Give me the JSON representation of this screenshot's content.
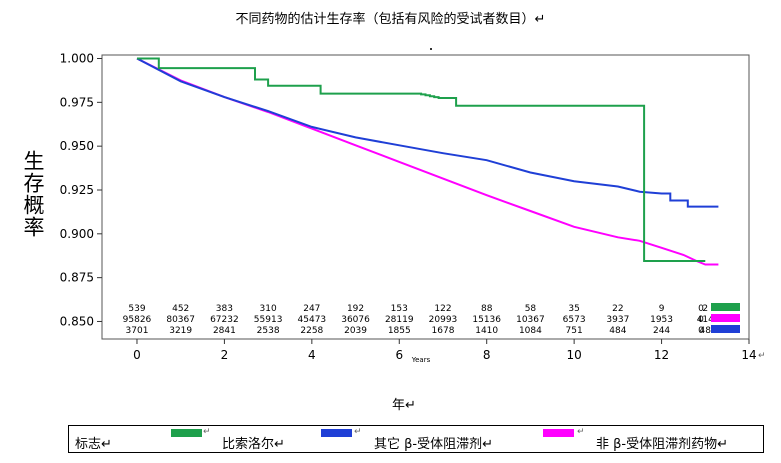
{
  "chart_data": {
    "type": "line",
    "title": "不同药物的估计生存率（包括有风险的受试者数目）↵",
    "xlabel": "年↵",
    "ylabel": "生存概率",
    "inner_xlabel": "Years",
    "xlim": [
      -0.8,
      14
    ],
    "ylim": [
      0.84,
      1.002
    ],
    "xticks": [
      0,
      2,
      4,
      6,
      8,
      10,
      12,
      14
    ],
    "yticks": [
      "1.000",
      "0.975",
      "0.950",
      "0.925",
      "0.900",
      "0.875",
      "0.850"
    ],
    "grid": false,
    "series": [
      {
        "name": "比索洛尔↵",
        "color": "#1ea04c",
        "x": [
          0,
          0.5,
          0.5,
          2.7,
          2.7,
          3.0,
          3.0,
          4.2,
          4.2,
          6.5,
          6.5,
          6.6,
          6.6,
          6.7,
          6.7,
          6.8,
          6.8,
          6.9,
          6.9,
          7.3,
          7.3,
          11.6,
          11.6,
          13.0
        ],
        "y": [
          1.0,
          1.0,
          0.9945,
          0.9945,
          0.988,
          0.988,
          0.9845,
          0.9845,
          0.98,
          0.98,
          0.9795,
          0.9795,
          0.979,
          0.979,
          0.9785,
          0.9785,
          0.978,
          0.978,
          0.9775,
          0.9775,
          0.973,
          0.973,
          0.8845,
          0.8845
        ]
      },
      {
        "name": "其它 β-受体阻滞剂↵",
        "color": "#1f3fd6",
        "x": [
          0,
          1,
          2,
          3,
          4,
          5,
          6,
          7,
          8,
          9,
          10,
          11,
          11.5,
          12,
          12.2,
          12.2,
          12.5,
          12.6,
          12.6,
          13.3
        ],
        "y": [
          1.0,
          0.987,
          0.978,
          0.97,
          0.961,
          0.955,
          0.9505,
          0.946,
          0.942,
          0.935,
          0.93,
          0.927,
          0.924,
          0.923,
          0.923,
          0.919,
          0.919,
          0.919,
          0.9155,
          0.9155
        ]
      },
      {
        "name": "非 β-受体阻滞剂药物↵",
        "color": "#ff00ff",
        "x": [
          0,
          1,
          2,
          3,
          4,
          5,
          6,
          7,
          8,
          9,
          10,
          11,
          11.5,
          12,
          12.5,
          12.8,
          13.0,
          13.3
        ],
        "y": [
          1.0,
          0.9875,
          0.978,
          0.9695,
          0.96,
          0.9505,
          0.941,
          0.9315,
          0.922,
          0.913,
          0.904,
          0.898,
          0.896,
          0.892,
          0.888,
          0.8845,
          0.8825,
          0.8825
        ]
      }
    ],
    "risk_table": {
      "x": [
        0,
        1,
        2,
        3,
        4,
        5,
        6,
        7,
        8,
        9,
        10,
        11,
        12,
        13
      ],
      "rows": [
        {
          "values": [
            "539",
            "452",
            "383",
            "310",
            "247",
            "192",
            "153",
            "122",
            "88",
            "58",
            "35",
            "22",
            "9",
            "2"
          ],
          "end": "0",
          "color": "#1ea04c"
        },
        {
          "values": [
            "95826",
            "80367",
            "67232",
            "55913",
            "45473",
            "36076",
            "28119",
            "20993",
            "15136",
            "10367",
            "6573",
            "3937",
            "1953",
            "414"
          ],
          "end": "0",
          "color": "#ff00ff"
        },
        {
          "values": [
            "3701",
            "3219",
            "2841",
            "2538",
            "2258",
            "2039",
            "1855",
            "1678",
            "1410",
            "1084",
            "751",
            "484",
            "244",
            "48"
          ],
          "end": "0",
          "color": "#1f3fd6"
        }
      ]
    },
    "legend_title": "标志↵",
    "page_marks": [
      "↵",
      "↵",
      "↵"
    ]
  }
}
